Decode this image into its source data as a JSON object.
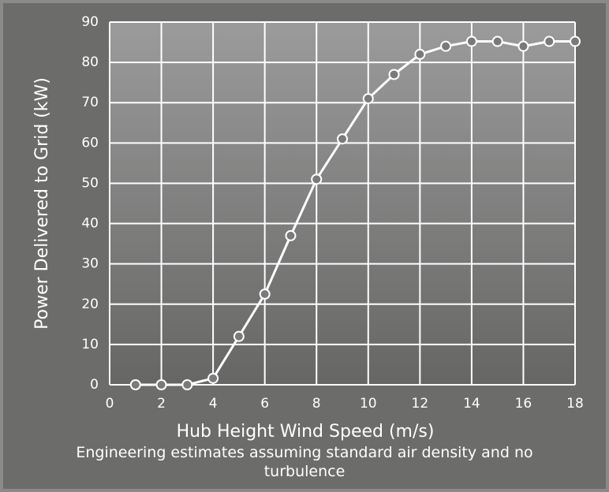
{
  "chart_data": {
    "type": "line",
    "xlabel": "Hub Height Wind Speed (m/s)",
    "ylabel": "Power Delivered to Grid (kW)",
    "subtitle": "Engineering estimates assuming standard air density and no turbulence",
    "x": [
      1,
      2,
      3,
      4,
      5,
      6,
      7,
      8,
      9,
      10,
      11,
      12,
      13,
      14,
      15,
      16,
      17,
      18
    ],
    "series": [
      {
        "color": "#ffffff",
        "values": [
          0,
          0,
          0,
          1.6,
          12,
          22.5,
          37,
          51,
          61,
          71,
          77,
          82,
          84,
          85.2,
          85.2,
          84,
          85.2,
          85.2
        ]
      }
    ],
    "xlim": [
      0,
      18
    ],
    "xticks": [
      0,
      2,
      4,
      6,
      8,
      10,
      12,
      14,
      16,
      18
    ],
    "ylim": [
      0,
      90
    ],
    "yticks": [
      0,
      10,
      20,
      30,
      40,
      50,
      60,
      70,
      80,
      90
    ],
    "grid": true
  }
}
